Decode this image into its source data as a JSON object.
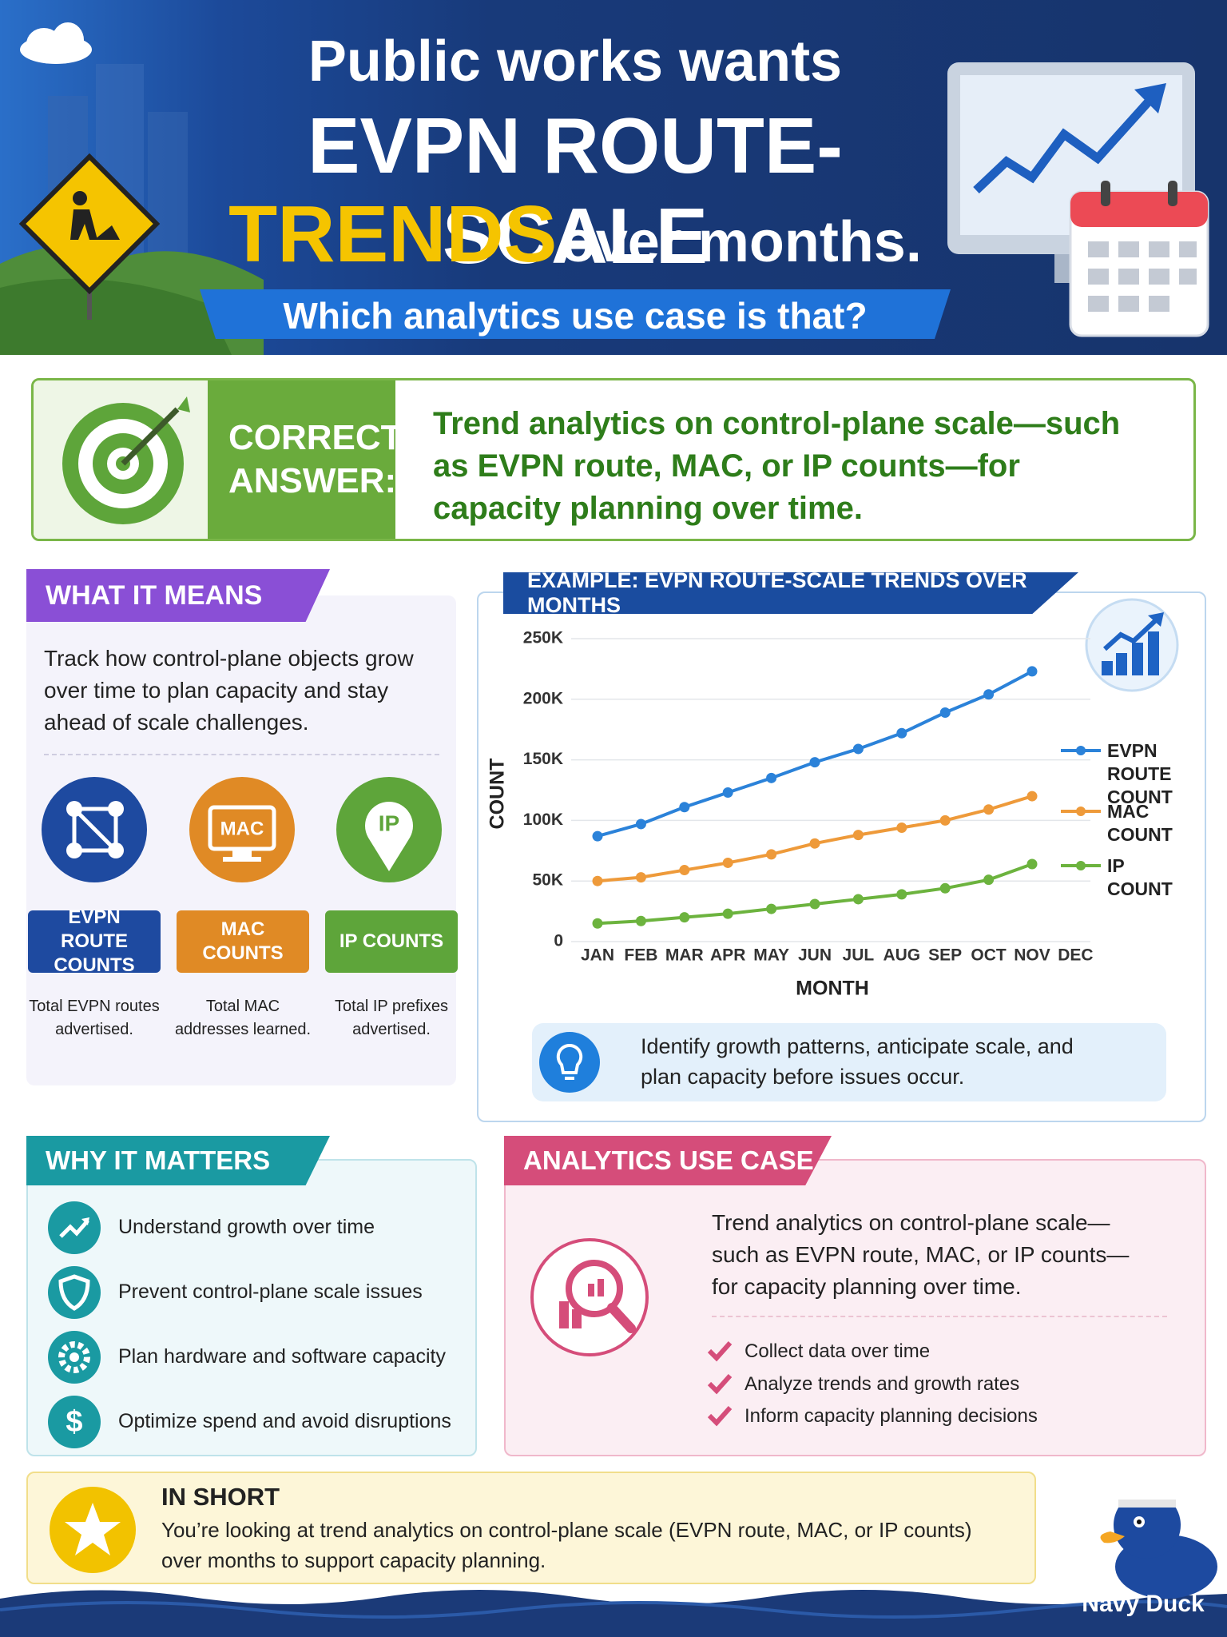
{
  "header": {
    "line1": "Public works wants",
    "line2": "EVPN ROUTE-SCALE",
    "highlight": "TRENDS",
    "line3_end": "over months.",
    "subtitle": "Which analytics use case is that?"
  },
  "answer": {
    "label": "CORRECT ANSWER:",
    "text": "Trend analytics on control-plane scale—such as EVPN route, MAC, or IP counts—for capacity planning over time."
  },
  "meaning": {
    "title": "WHAT IT MEANS",
    "text": "Track how control-plane objects grow over time to plan capacity and stay ahead of scale challenges.",
    "icon_texts": [
      "MAC",
      "IP"
    ],
    "items": [
      {
        "label": "EVPN ROUTE COUNTS",
        "desc": "Total EVPN routes advertised."
      },
      {
        "label": "MAC COUNTS",
        "desc": "Total MAC addresses learned."
      },
      {
        "label": "IP COUNTS",
        "desc": "Total IP prefixes advertised."
      }
    ]
  },
  "chart_data": {
    "type": "line",
    "title": "EXAMPLE: EVPN ROUTE-SCALE TRENDS OVER MONTHS",
    "x_label": "MONTH",
    "y_label": "COUNT",
    "categories": [
      "JAN",
      "FEB",
      "MAR",
      "APR",
      "MAY",
      "JUN",
      "JUL",
      "AUG",
      "SEP",
      "OCT",
      "NOV",
      "DEC"
    ],
    "series": [
      {
        "name": "EVPN ROUTE COUNT",
        "color": "#2b82d9",
        "values": [
          87000,
          97000,
          111000,
          123000,
          135000,
          148000,
          159000,
          172000,
          189000,
          204000,
          223000,
          null
        ]
      },
      {
        "name": "MAC COUNT",
        "color": "#ee9a3a",
        "values": [
          50000,
          53000,
          59000,
          65000,
          72000,
          81000,
          88000,
          94000,
          100000,
          109000,
          120000,
          null
        ]
      },
      {
        "name": "IP COUNT",
        "color": "#6cb33e",
        "values": [
          15000,
          17000,
          20000,
          23000,
          27000,
          31000,
          35000,
          39000,
          44000,
          51000,
          64000,
          null
        ]
      }
    ],
    "ylim": [
      0,
      250000
    ],
    "yticks": [
      0,
      {
        "value": 50000,
        "label": "50K"
      },
      {
        "value": 100000,
        "label": "100K"
      },
      {
        "value": 150000,
        "label": "150K"
      },
      {
        "value": 200000,
        "label": "200K"
      },
      {
        "value": 250000,
        "label": "250K"
      }
    ],
    "grid": true,
    "legend": "right"
  },
  "chart_note": "Identify growth patterns, anticipate scale, and plan capacity before issues occur.",
  "why": {
    "title": "WHY IT MATTERS",
    "items": [
      "Understand growth over time",
      "Prevent control-plane scale issues",
      "Plan hardware and software capacity",
      "Optimize spend and avoid disruptions"
    ]
  },
  "use_case": {
    "title": "ANALYTICS USE CASE",
    "text": "Trend analytics on control-plane scale—such as EVPN route, MAC, or IP counts—for capacity planning over time.",
    "checks": [
      "Collect data over time",
      "Analyze trends and growth rates",
      "Inform capacity planning decisions"
    ]
  },
  "in_short": {
    "title": "IN SHORT",
    "text": "You’re looking at trend analytics on control-plane scale (EVPN route, MAC, or IP counts) over months to support capacity planning."
  },
  "brand": "Navy Duck"
}
